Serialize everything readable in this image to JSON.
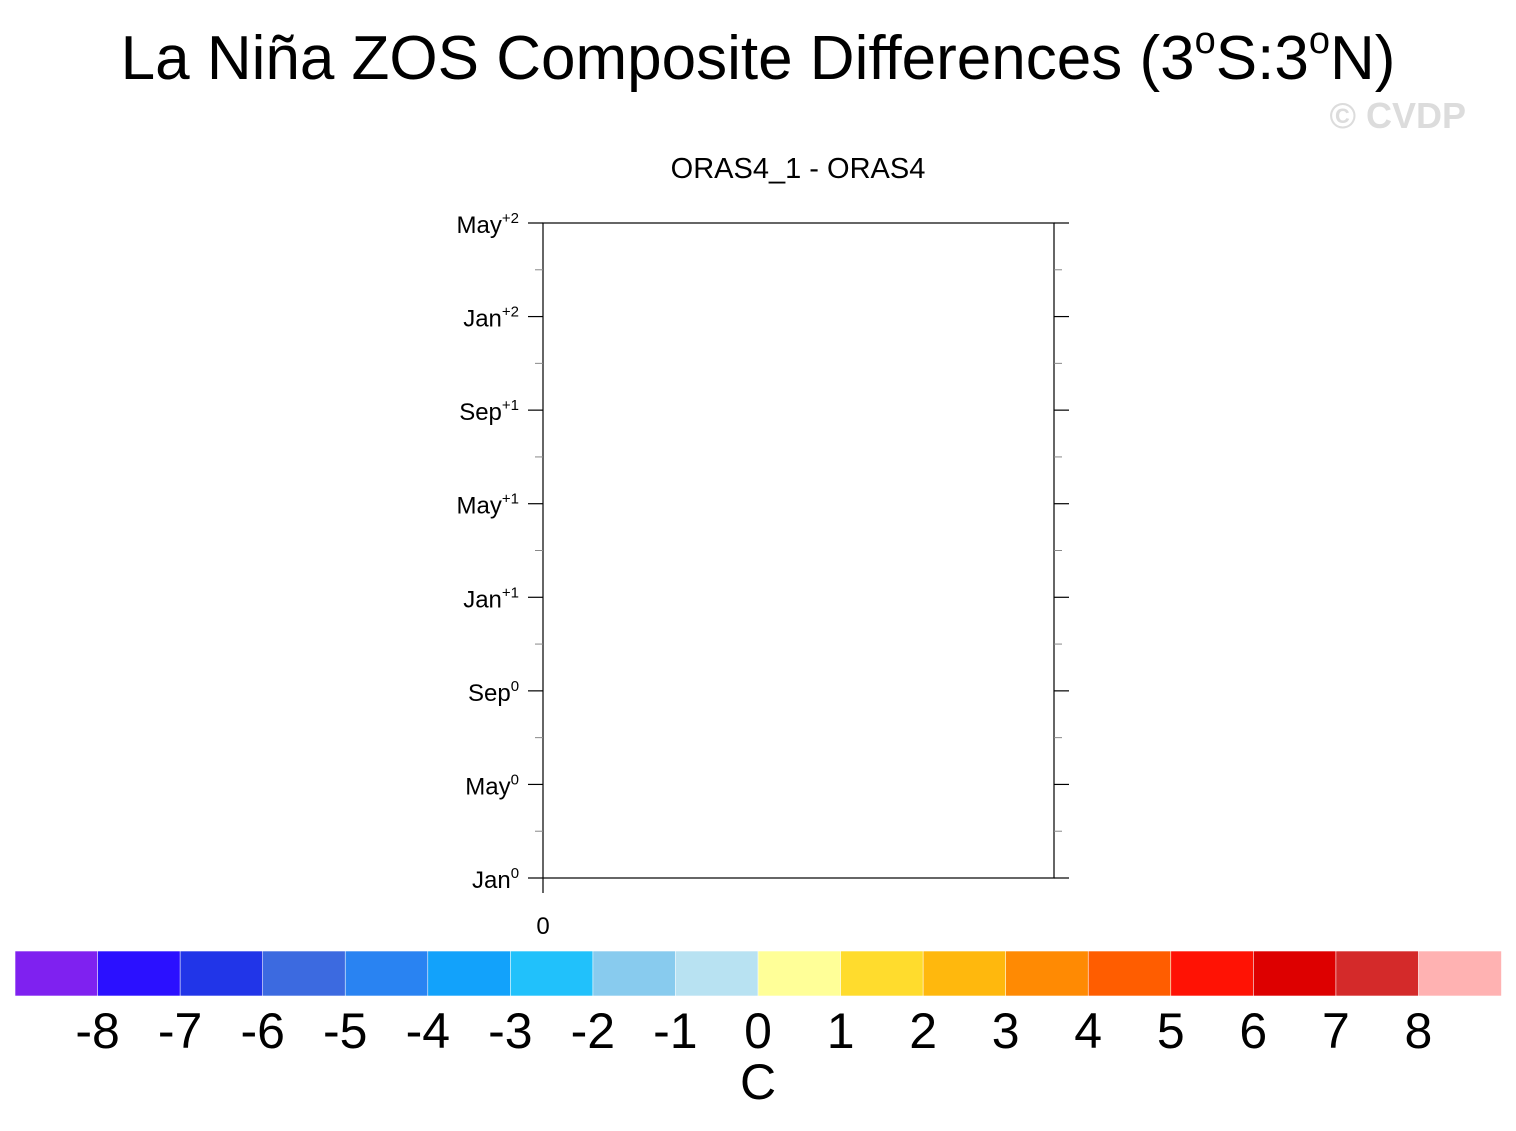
{
  "header": {
    "title_main": "La Niña ZOS Composite Differences (3",
    "deg1": "o",
    "title_mid": "S:3",
    "deg2": "o",
    "title_end": "N)",
    "watermark": "© CVDP"
  },
  "chart_data": {
    "type": "heatmap",
    "subtitle": "ORAS4_1 - ORAS4",
    "y_ticks": [
      {
        "base": "Jan",
        "sup": "0"
      },
      {
        "base": "May",
        "sup": "0"
      },
      {
        "base": "Sep",
        "sup": "0"
      },
      {
        "base": "Jan",
        "sup": "+1"
      },
      {
        "base": "May",
        "sup": "+1"
      },
      {
        "base": "Sep",
        "sup": "+1"
      },
      {
        "base": "Jan",
        "sup": "+2"
      },
      {
        "base": "May",
        "sup": "+2"
      }
    ],
    "x_ticks": [
      "0"
    ],
    "values": [],
    "colorbar": {
      "labels": [
        "-8",
        "-7",
        "-6",
        "-5",
        "-4",
        "-3",
        "-2",
        "-1",
        "0",
        "1",
        "2",
        "3",
        "4",
        "5",
        "6",
        "7",
        "8"
      ],
      "colors": [
        "#7f21f0",
        "#2b10ff",
        "#2135e8",
        "#3c6ae0",
        "#2983f2",
        "#12a2fb",
        "#21c1fb",
        "#88cbee",
        "#b8e2f2",
        "#ffff98",
        "#ffdc2d",
        "#ffb80d",
        "#ff8a03",
        "#ff5d00",
        "#ff1204",
        "#dd0000",
        "#d42a2a",
        "#ffb2b2"
      ],
      "unit": "C"
    }
  }
}
